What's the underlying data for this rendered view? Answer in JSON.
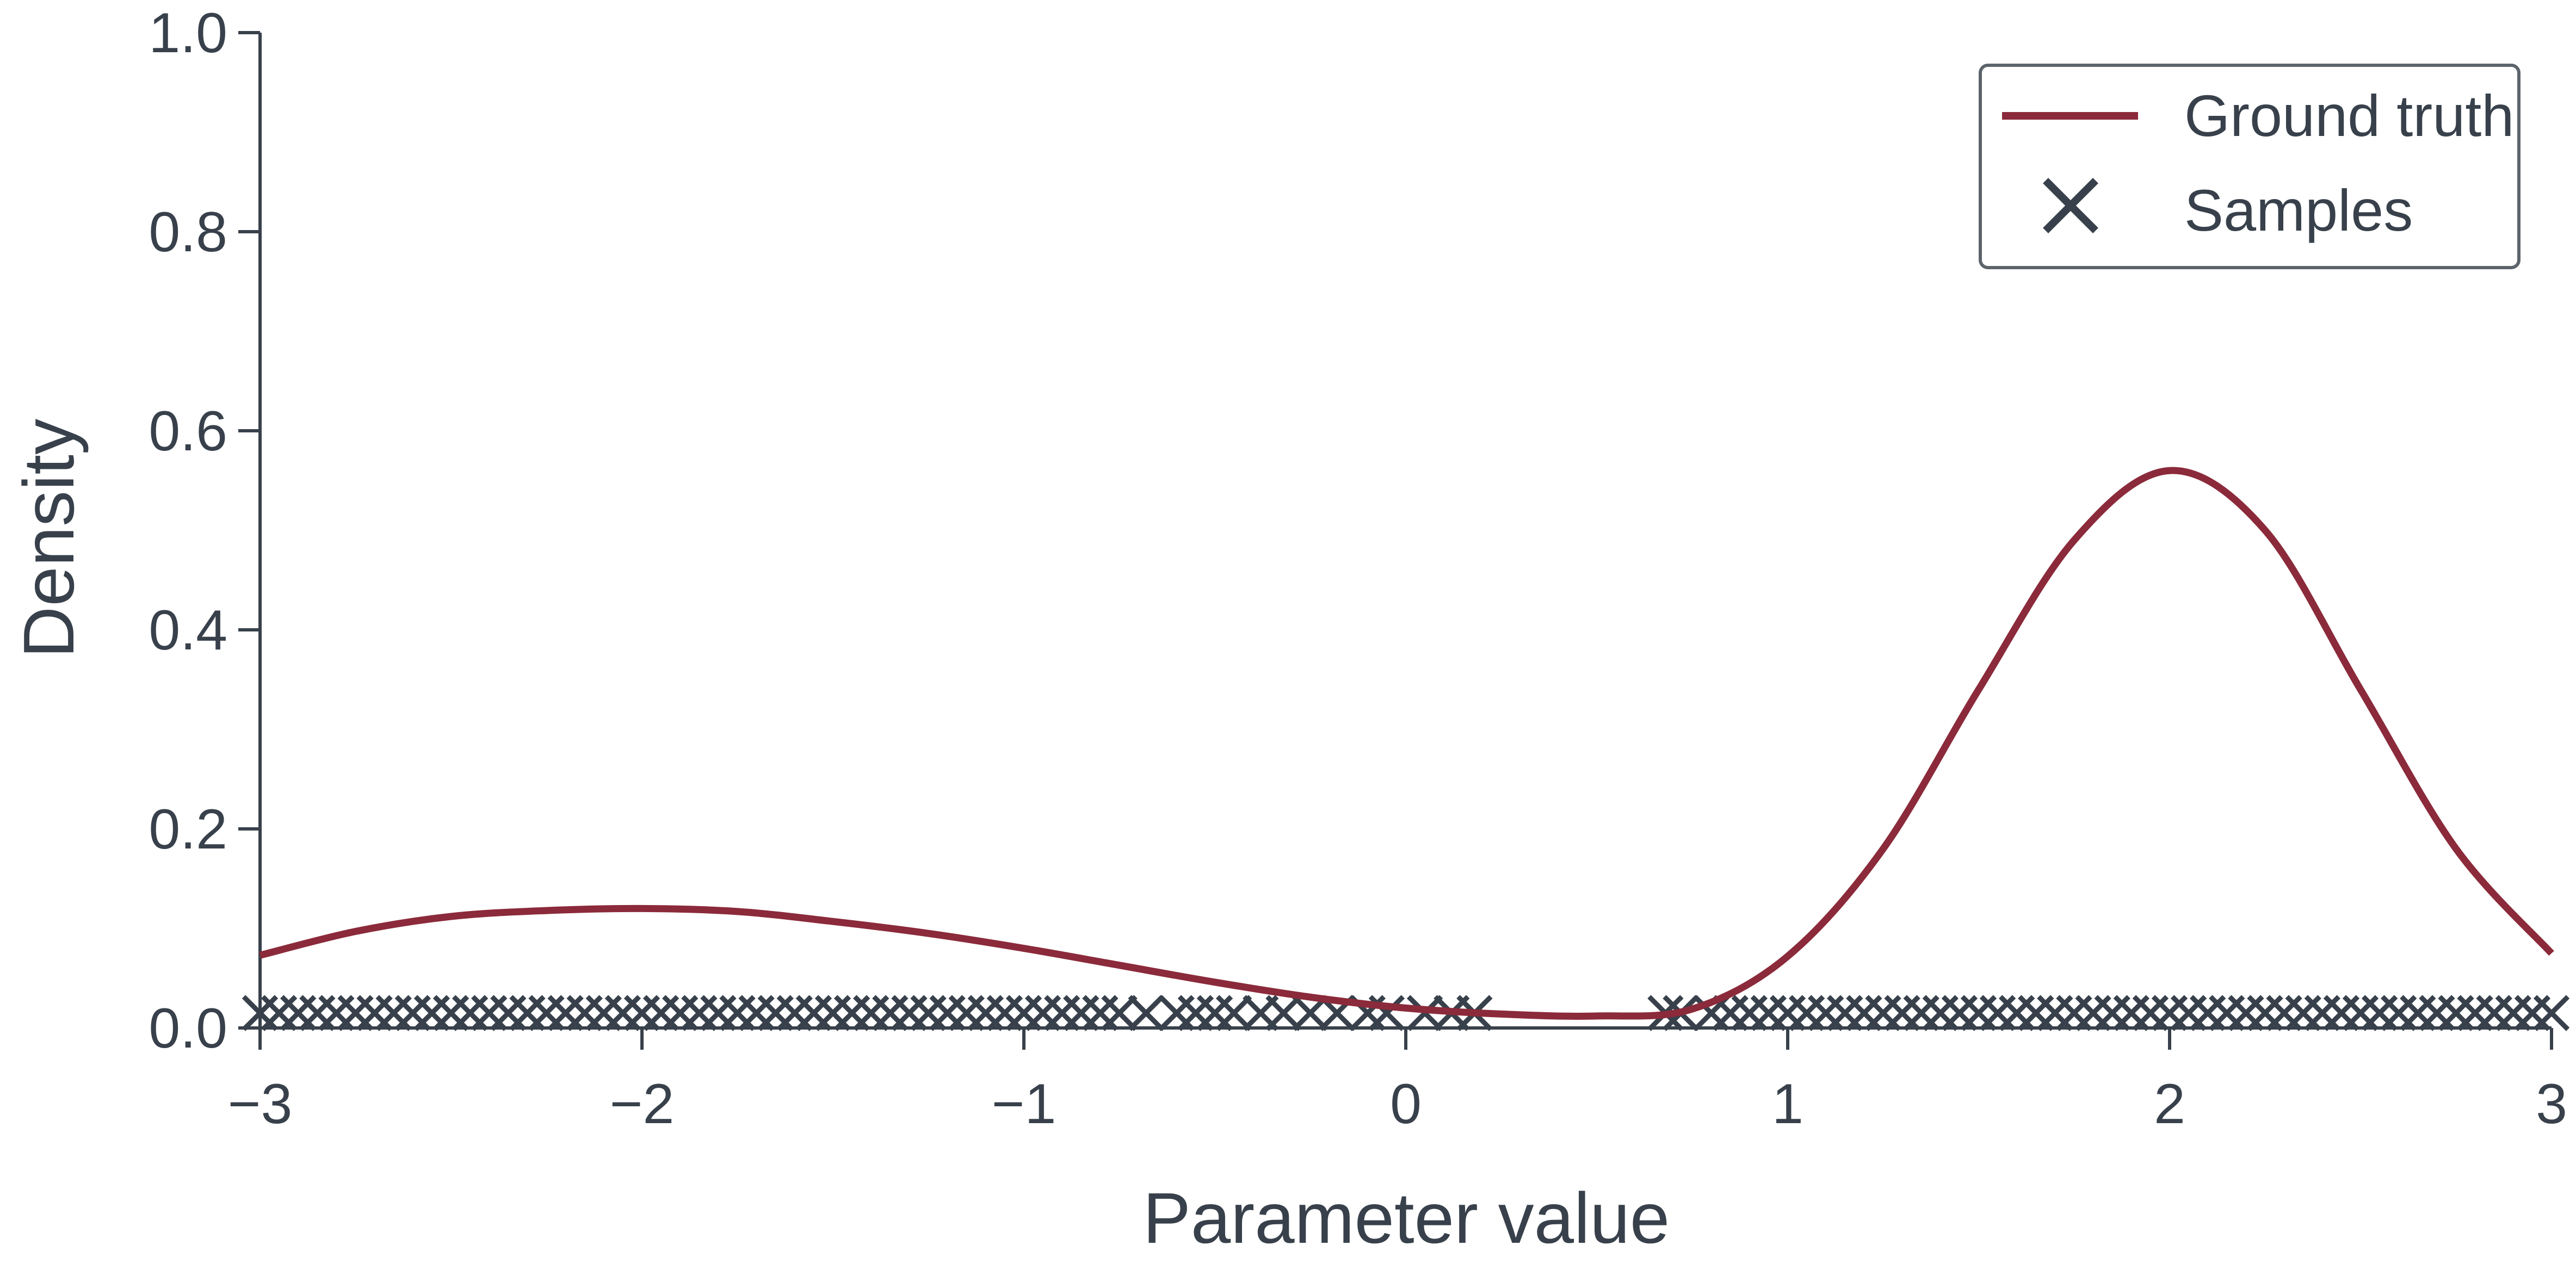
{
  "chart_data": {
    "type": "line",
    "xlabel": "Parameter value",
    "ylabel": "Density",
    "xlim": [
      -3,
      3
    ],
    "ylim": [
      0,
      1.0
    ],
    "x_ticks": [
      -3,
      -2,
      -1,
      0,
      1,
      2,
      3
    ],
    "x_tick_labels": [
      "−3",
      "−2",
      "−1",
      "0",
      "1",
      "2",
      "3"
    ],
    "y_ticks": [
      0,
      0.2,
      0.4,
      0.6,
      0.8,
      1.0
    ],
    "y_tick_labels": [
      "0.0",
      "0.2",
      "0.4",
      "0.6",
      "0.8",
      "1.0"
    ],
    "grid": false,
    "legend_position": "top-right",
    "series": [
      {
        "name": "Ground truth",
        "kind": "line",
        "color": "#8b2a3a",
        "x": [
          -3.0,
          -2.75,
          -2.5,
          -2.25,
          -2.0,
          -1.75,
          -1.5,
          -1.25,
          -1.0,
          -0.75,
          -0.5,
          -0.25,
          0.0,
          0.25,
          0.5,
          0.75,
          1.0,
          1.25,
          1.5,
          1.75,
          2.0,
          2.25,
          2.5,
          2.75,
          3.0
        ],
        "y": [
          0.073,
          0.097,
          0.112,
          0.118,
          0.12,
          0.117,
          0.107,
          0.095,
          0.08,
          0.063,
          0.046,
          0.031,
          0.02,
          0.014,
          0.012,
          0.019,
          0.072,
          0.18,
          0.34,
          0.49,
          0.56,
          0.5,
          0.34,
          0.18,
          0.075
        ]
      },
      {
        "name": "Samples",
        "kind": "scatter",
        "marker": "x",
        "color": "#38414b",
        "x": [
          -3.0,
          -2.95,
          -2.9,
          -2.85,
          -2.8,
          -2.75,
          -2.7,
          -2.65,
          -2.6,
          -2.55,
          -2.5,
          -2.45,
          -2.4,
          -2.35,
          -2.3,
          -2.25,
          -2.2,
          -2.15,
          -2.1,
          -2.05,
          -2.0,
          -1.95,
          -1.9,
          -1.85,
          -1.8,
          -1.75,
          -1.7,
          -1.65,
          -1.6,
          -1.55,
          -1.5,
          -1.45,
          -1.4,
          -1.35,
          -1.3,
          -1.25,
          -1.2,
          -1.15,
          -1.1,
          -1.05,
          -1.0,
          -0.95,
          -0.9,
          -0.85,
          -0.8,
          -0.75,
          -0.68,
          -0.6,
          -0.55,
          -0.5,
          -0.45,
          -0.38,
          -0.32,
          -0.25,
          -0.18,
          -0.1,
          -0.05,
          0.05,
          0.12,
          0.18,
          0.68,
          0.72,
          0.8,
          0.85,
          0.9,
          0.95,
          1.0,
          1.05,
          1.1,
          1.15,
          1.2,
          1.25,
          1.3,
          1.35,
          1.4,
          1.45,
          1.5,
          1.55,
          1.6,
          1.65,
          1.7,
          1.75,
          1.8,
          1.85,
          1.9,
          1.95,
          2.0,
          2.05,
          2.1,
          2.15,
          2.2,
          2.25,
          2.3,
          2.35,
          2.4,
          2.45,
          2.5,
          2.55,
          2.6,
          2.65,
          2.7,
          2.75,
          2.8,
          2.85,
          2.9,
          2.95,
          3.0
        ],
        "y": [
          0.015,
          0.015,
          0.015,
          0.015,
          0.015,
          0.015,
          0.015,
          0.015,
          0.015,
          0.015,
          0.015,
          0.015,
          0.015,
          0.015,
          0.015,
          0.015,
          0.015,
          0.015,
          0.015,
          0.015,
          0.015,
          0.015,
          0.015,
          0.015,
          0.015,
          0.015,
          0.015,
          0.015,
          0.015,
          0.015,
          0.015,
          0.015,
          0.015,
          0.015,
          0.015,
          0.015,
          0.015,
          0.015,
          0.015,
          0.015,
          0.015,
          0.015,
          0.015,
          0.015,
          0.015,
          0.015,
          0.015,
          0.015,
          0.015,
          0.015,
          0.015,
          0.015,
          0.015,
          0.015,
          0.015,
          0.015,
          0.015,
          0.015,
          0.015,
          0.015,
          0.015,
          0.015,
          0.015,
          0.015,
          0.015,
          0.015,
          0.015,
          0.015,
          0.015,
          0.015,
          0.015,
          0.015,
          0.015,
          0.015,
          0.015,
          0.015,
          0.015,
          0.015,
          0.015,
          0.015,
          0.015,
          0.015,
          0.015,
          0.015,
          0.015,
          0.015,
          0.015,
          0.015,
          0.015,
          0.015,
          0.015,
          0.015,
          0.015,
          0.015,
          0.015,
          0.015,
          0.015,
          0.015,
          0.015,
          0.015,
          0.015,
          0.015,
          0.015,
          0.015,
          0.015,
          0.015,
          0.015
        ]
      }
    ]
  }
}
